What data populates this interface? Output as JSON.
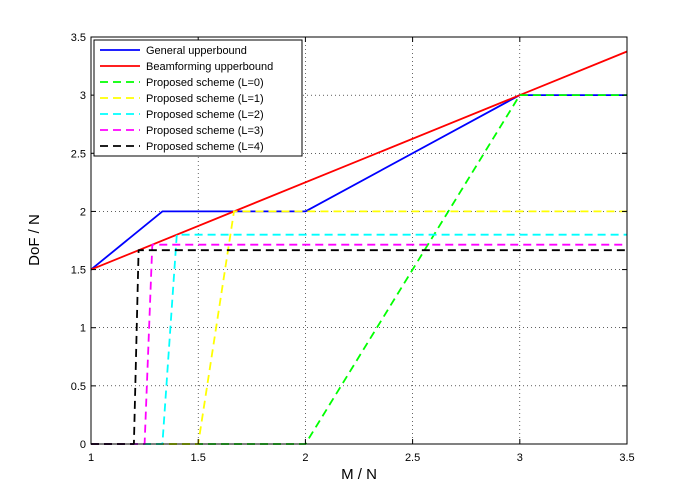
{
  "chart_data": {
    "type": "line",
    "xlabel": "M / N",
    "ylabel": "DoF / N",
    "xlim": [
      1,
      3.5
    ],
    "ylim": [
      0,
      3.5
    ],
    "xticks": [
      "1",
      "1.5",
      "2",
      "2.5",
      "3",
      "3.5"
    ],
    "yticks": [
      "0",
      "0.5",
      "1",
      "1.5",
      "2",
      "2.5",
      "3",
      "3.5"
    ],
    "grid": true,
    "legend_position": "top-left",
    "series": [
      {
        "name": "General upperbound",
        "color": "#0000ff",
        "dash": "solid",
        "x": [
          1,
          1.333,
          2,
          3,
          3.5
        ],
        "y": [
          1.5,
          2,
          2,
          3,
          3
        ]
      },
      {
        "name": "Beamforming upperbound",
        "color": "#ff0000",
        "dash": "solid",
        "x": [
          1,
          3.5
        ],
        "y": [
          1.5,
          3.375
        ]
      },
      {
        "name": "Proposed scheme (L=0)",
        "color": "#00ff00",
        "dash": "dashed",
        "x": [
          1,
          2,
          3,
          3.5
        ],
        "y": [
          0,
          0,
          3,
          3
        ]
      },
      {
        "name": "Proposed scheme (L=1)",
        "color": "#ffff00",
        "dash": "dashed",
        "x": [
          1,
          1.5,
          1.667,
          3.5
        ],
        "y": [
          0,
          0,
          2,
          2
        ]
      },
      {
        "name": "Proposed scheme (L=2)",
        "color": "#00ffff",
        "dash": "dashed",
        "x": [
          1,
          1.333,
          1.4,
          3.5
        ],
        "y": [
          0,
          0,
          1.8,
          1.8
        ]
      },
      {
        "name": "Proposed scheme (L=3)",
        "color": "#ff00ff",
        "dash": "dashed",
        "x": [
          1,
          1.25,
          1.286,
          3.5
        ],
        "y": [
          0,
          0,
          1.714,
          1.714
        ]
      },
      {
        "name": "Proposed scheme (L=4)",
        "color": "#000000",
        "dash": "dashed",
        "x": [
          1,
          1.2,
          1.222,
          3.5
        ],
        "y": [
          0,
          0,
          1.667,
          1.667
        ]
      }
    ]
  }
}
